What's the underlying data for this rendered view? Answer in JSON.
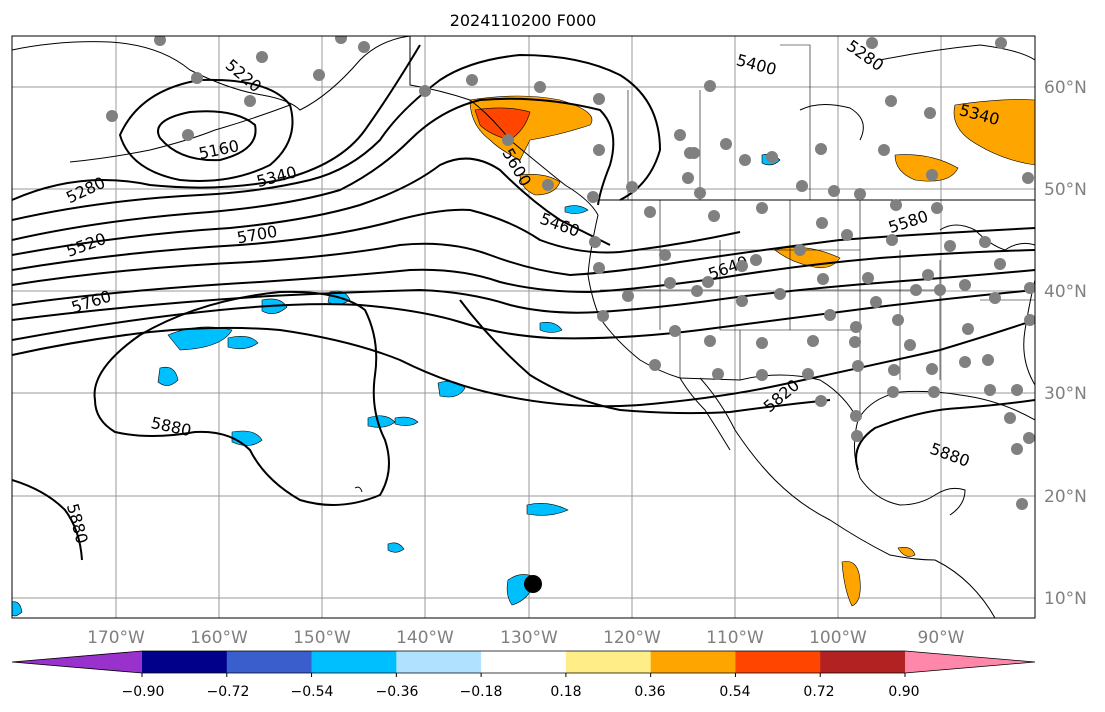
{
  "title": "2024110200 F000",
  "lon_labels": [
    "170°W",
    "160°W",
    "150°W",
    "140°W",
    "130°W",
    "120°W",
    "110°W",
    "100°W",
    "90°W"
  ],
  "lat_labels": [
    "60°N",
    "50°N",
    "40°N",
    "30°N",
    "20°N",
    "10°N"
  ],
  "contour_labels": [
    "5220",
    "5160",
    "5280",
    "5340",
    "5520",
    "5700",
    "5760",
    "5880",
    "5400",
    "5280",
    "5340",
    "5460",
    "5580",
    "5640",
    "5820",
    "5880",
    "5600",
    "5880"
  ],
  "colorbar": {
    "colors": [
      "#9932cc",
      "#00008b",
      "#3a5fcd",
      "#00bfff",
      "#b0e2ff",
      "#ffffff",
      "#ffee88",
      "#ffa500",
      "#ff4500",
      "#b22222",
      "#ff88aa"
    ],
    "tick_labels": [
      "−0.90",
      "−0.72",
      "−0.54",
      "−0.36",
      "−0.18",
      "0.18",
      "0.36",
      "0.54",
      "0.72",
      "0.90"
    ]
  },
  "colors": {
    "contour": "#000000",
    "coast": "#000000",
    "grid": "#999999",
    "stations": "#808080",
    "marker": "#000000"
  }
}
